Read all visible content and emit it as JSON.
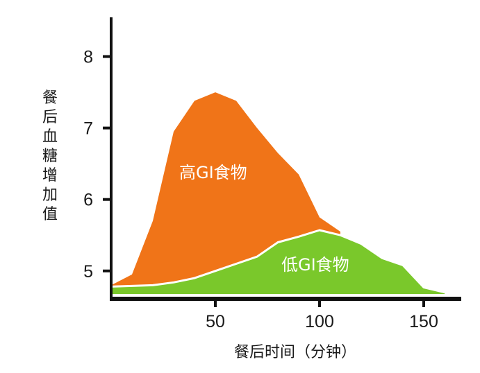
{
  "chart_data": {
    "type": "area",
    "xlabel": "餐后时间（分钟）",
    "ylabel": "餐后血糖增加值",
    "xlim": [
      0,
      165
    ],
    "ylim": [
      4.6,
      8.5
    ],
    "xticks": [
      50,
      100,
      150
    ],
    "yticks": [
      5,
      6,
      7,
      8
    ],
    "series": [
      {
        "name": "高GI食物",
        "color": "#f07418",
        "points": [
          [
            0,
            4.8
          ],
          [
            10,
            4.95
          ],
          [
            20,
            5.7
          ],
          [
            30,
            6.95
          ],
          [
            40,
            7.38
          ],
          [
            50,
            7.5
          ],
          [
            60,
            7.38
          ],
          [
            70,
            7.0
          ],
          [
            80,
            6.65
          ],
          [
            90,
            6.35
          ],
          [
            100,
            5.75
          ],
          [
            110,
            5.55
          ]
        ]
      },
      {
        "name": "低GI食物",
        "color": "#7ac82b",
        "points": [
          [
            0,
            4.78
          ],
          [
            10,
            4.79
          ],
          [
            20,
            4.8
          ],
          [
            30,
            4.84
          ],
          [
            40,
            4.9
          ],
          [
            50,
            5.0
          ],
          [
            60,
            5.1
          ],
          [
            70,
            5.2
          ],
          [
            80,
            5.4
          ],
          [
            90,
            5.48
          ],
          [
            100,
            5.57
          ],
          [
            110,
            5.5
          ],
          [
            120,
            5.38
          ],
          [
            130,
            5.18
          ],
          [
            140,
            5.08
          ],
          [
            150,
            4.77
          ],
          [
            160,
            4.7
          ]
        ]
      }
    ]
  }
}
